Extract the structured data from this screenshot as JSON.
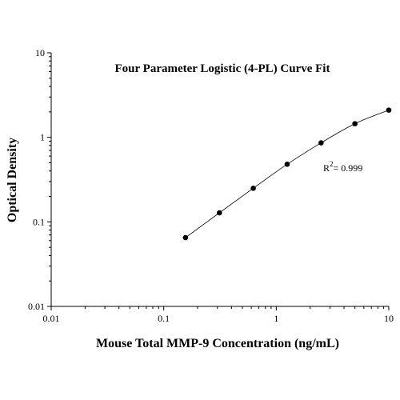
{
  "chart_data": {
    "type": "scatter",
    "title": "Four Parameter Logistic (4-PL) Curve Fit",
    "xlabel": "Mouse Total MMP-9 Concentration (ng/mL)",
    "ylabel": "Optical Density",
    "x_scale": "log",
    "y_scale": "log",
    "xlim": [
      0.01,
      10
    ],
    "ylim": [
      0.01,
      10
    ],
    "x_ticks": [
      "0.01",
      "0.1",
      "1",
      "10"
    ],
    "y_ticks": [
      "0.01",
      "0.1",
      "1",
      "10"
    ],
    "grid": false,
    "legend": "none",
    "points": {
      "x": [
        0.156,
        0.3125,
        0.625,
        1.25,
        2.5,
        5,
        10
      ],
      "y": [
        0.065,
        0.128,
        0.25,
        0.48,
        0.86,
        1.45,
        2.1
      ]
    },
    "fit_curve": "4-PL",
    "annotation": {
      "r2_label": "R",
      "r2_sup": "2",
      "r2_value": "= 0.999"
    },
    "colors": {
      "line": "#000000",
      "marker": "#000000"
    }
  }
}
